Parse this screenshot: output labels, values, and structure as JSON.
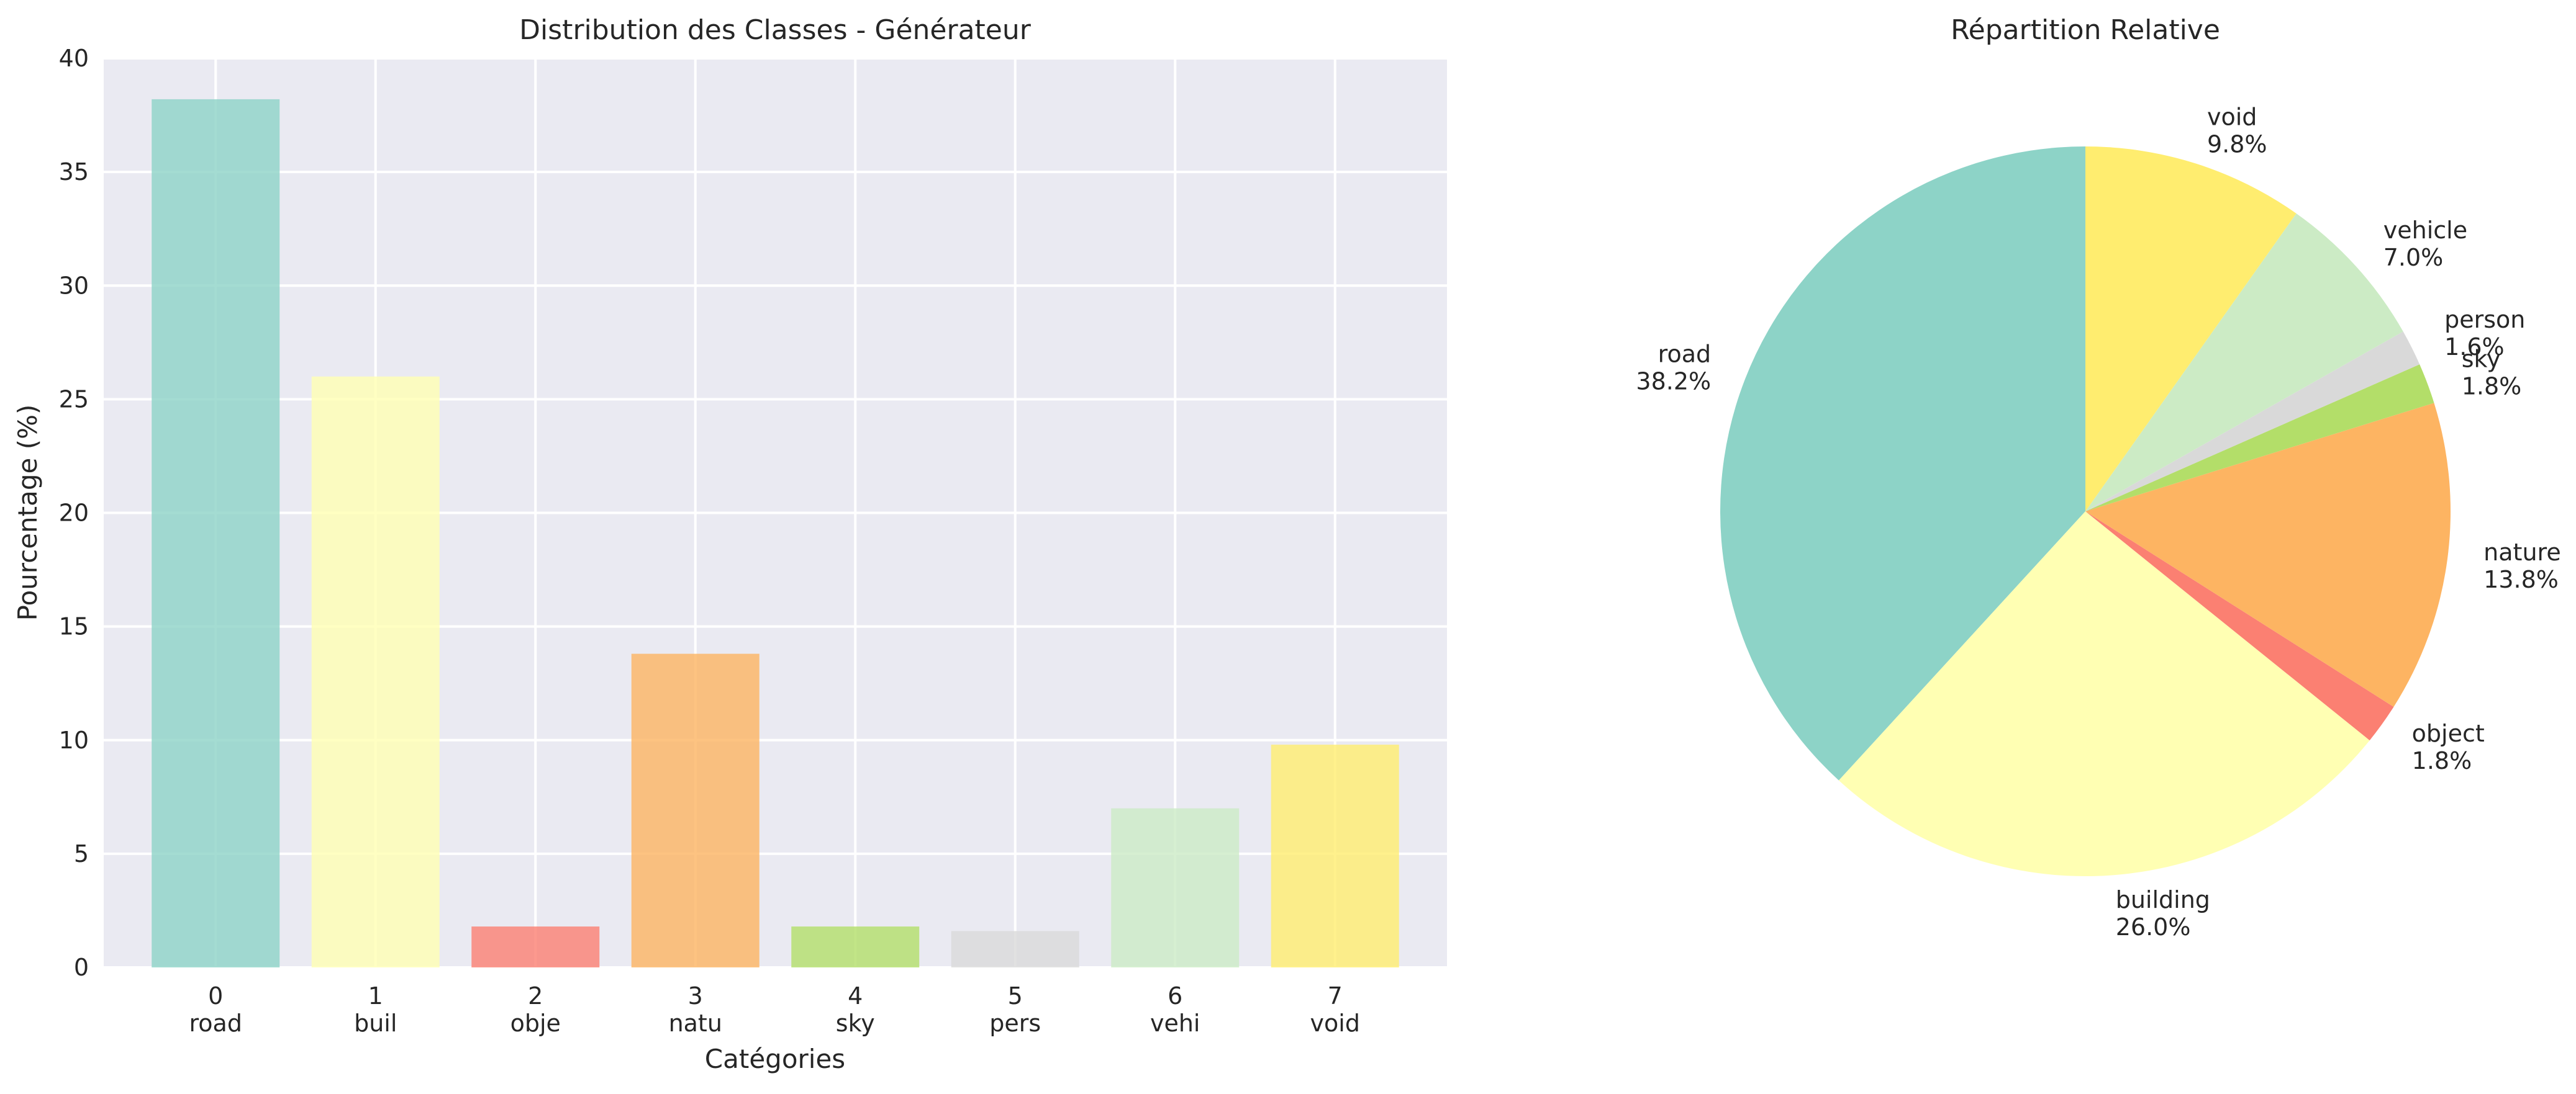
{
  "chart_data": [
    {
      "type": "bar",
      "title": "Distribution des Classes - Générateur",
      "xlabel": "Catégories",
      "ylabel": "Pourcentage (%)",
      "ylim": [
        0,
        40
      ],
      "yticks": [
        0,
        5,
        10,
        15,
        20,
        25,
        30,
        35,
        40
      ],
      "grid": true,
      "categories": [
        "0\nroad",
        "1\nbuil",
        "2\nobje",
        "3\nnatu",
        "4\nsky",
        "5\npers",
        "6\nvehi",
        "7\nvoid"
      ],
      "category_index": [
        "0",
        "1",
        "2",
        "3",
        "4",
        "5",
        "6",
        "7"
      ],
      "category_short": [
        "road",
        "buil",
        "obje",
        "natu",
        "sky",
        "pers",
        "vehi",
        "void"
      ],
      "values": [
        38.2,
        26.0,
        1.8,
        13.8,
        1.8,
        1.6,
        7.0,
        9.8
      ],
      "colors": [
        "#8dd3c7",
        "#ffffb3",
        "#fb8072",
        "#fdb462",
        "#b3de69",
        "#d9d9d9",
        "#ccebc5",
        "#ffed6f"
      ]
    },
    {
      "type": "pie",
      "title": "Répartition Relative",
      "labels": [
        "road",
        "building",
        "object",
        "nature",
        "sky",
        "person",
        "vehicle",
        "void"
      ],
      "values": [
        38.2,
        26.0,
        1.8,
        13.8,
        1.8,
        1.6,
        7.0,
        9.8
      ],
      "pct_labels": [
        "38.2%",
        "26.0%",
        "1.8%",
        "13.8%",
        "1.8%",
        "1.6%",
        "7.0%",
        "9.8%"
      ],
      "colors": [
        "#8dd3c7",
        "#ffffb3",
        "#fb8072",
        "#fdb462",
        "#b3de69",
        "#d9d9d9",
        "#ccebc5",
        "#ffed6f"
      ]
    }
  ]
}
